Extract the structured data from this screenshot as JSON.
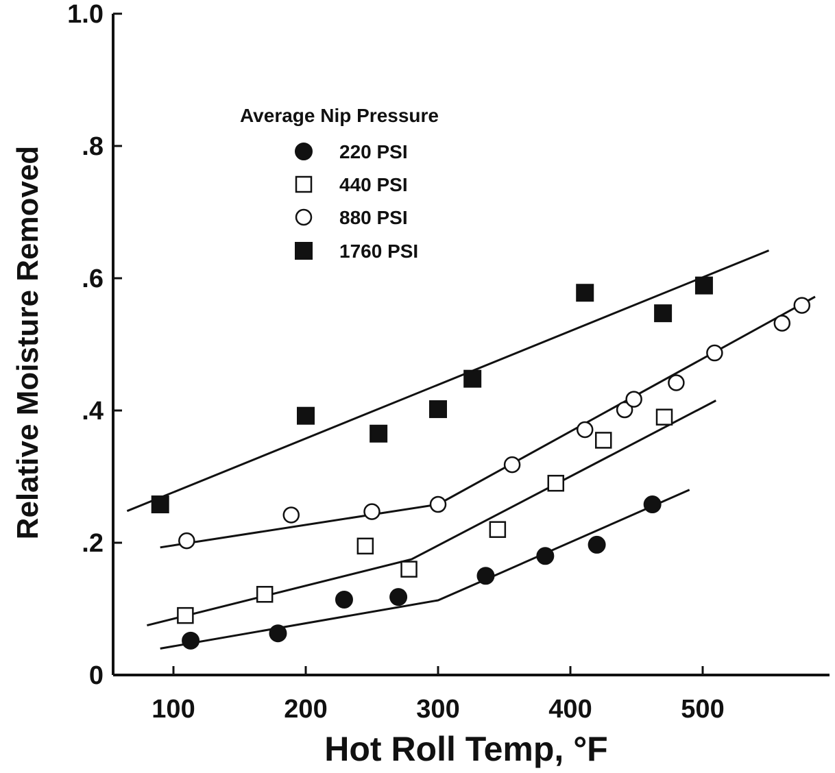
{
  "chart_data": {
    "type": "scatter",
    "title": "",
    "xlabel": "Hot Roll Temp, °F",
    "ylabel": "Relative Moisture Removed",
    "xlim": [
      60,
      590
    ],
    "ylim": [
      0,
      1.0
    ],
    "x_ticks": [
      100,
      200,
      300,
      400,
      500
    ],
    "x_tick_labels": [
      "100",
      "200",
      "300",
      "400",
      "500"
    ],
    "y_ticks": [
      0,
      0.2,
      0.4,
      0.6,
      0.8,
      1.0
    ],
    "y_tick_labels": [
      "0",
      ".2",
      ".4",
      ".6",
      ".8",
      "1.0"
    ],
    "grid": false,
    "legend_title": "Average Nip Pressure",
    "legend_position": "upper-left",
    "series": [
      {
        "name": "220 PSI",
        "marker": "filled-circle",
        "points": [
          [
            113,
            0.052
          ],
          [
            179,
            0.063
          ],
          [
            229,
            0.114
          ],
          [
            270,
            0.118
          ],
          [
            336,
            0.15
          ],
          [
            381,
            0.18
          ],
          [
            420,
            0.197
          ],
          [
            462,
            0.258
          ]
        ],
        "fit": [
          [
            90,
            0.04
          ],
          [
            300,
            0.113
          ],
          [
            340,
            0.148
          ],
          [
            490,
            0.28
          ]
        ]
      },
      {
        "name": "440 PSI",
        "marker": "open-square",
        "points": [
          [
            109,
            0.09
          ],
          [
            169,
            0.122
          ],
          [
            245,
            0.195
          ],
          [
            278,
            0.16
          ],
          [
            345,
            0.22
          ],
          [
            389,
            0.29
          ],
          [
            425,
            0.355
          ],
          [
            471,
            0.39
          ]
        ],
        "fit": [
          [
            80,
            0.075
          ],
          [
            280,
            0.175
          ],
          [
            510,
            0.415
          ]
        ]
      },
      {
        "name": "880 PSI",
        "marker": "open-circle",
        "points": [
          [
            110,
            0.203
          ],
          [
            189,
            0.242
          ],
          [
            250,
            0.247
          ],
          [
            300,
            0.258
          ],
          [
            356,
            0.318
          ],
          [
            411,
            0.371
          ],
          [
            441,
            0.401
          ],
          [
            448,
            0.417
          ],
          [
            480,
            0.442
          ],
          [
            509,
            0.487
          ],
          [
            560,
            0.532
          ],
          [
            575,
            0.559
          ]
        ],
        "fit": [
          [
            90,
            0.193
          ],
          [
            300,
            0.258
          ],
          [
            585,
            0.572
          ]
        ]
      },
      {
        "name": "1760 PSI",
        "marker": "filled-square",
        "points": [
          [
            90,
            0.258
          ],
          [
            200,
            0.392
          ],
          [
            255,
            0.365
          ],
          [
            300,
            0.402
          ],
          [
            326,
            0.448
          ],
          [
            411,
            0.578
          ],
          [
            470,
            0.547
          ],
          [
            501,
            0.589
          ]
        ],
        "fit": [
          [
            65,
            0.248
          ],
          [
            550,
            0.642
          ]
        ]
      }
    ]
  },
  "legend": {
    "title": "Average Nip Pressure",
    "items": [
      "220 PSI",
      "440 PSI",
      "880 PSI",
      "1760 PSI"
    ]
  },
  "colors": {
    "ink": "#111111",
    "background": "#ffffff"
  }
}
